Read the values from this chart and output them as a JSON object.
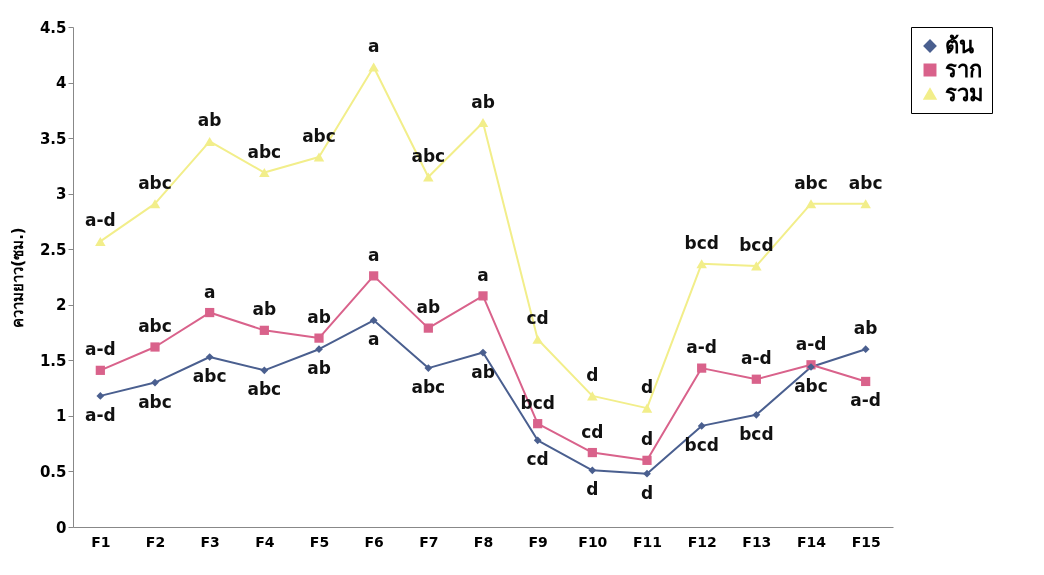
{
  "chart_data": {
    "type": "line",
    "ylabel": "ความยาว(ซม.)",
    "categories": [
      "F1",
      "F2",
      "F3",
      "F4",
      "F5",
      "F6",
      "F7",
      "F8",
      "F9",
      "F10",
      "F11",
      "F12",
      "F13",
      "F14",
      "F15"
    ],
    "series": [
      {
        "name": "ต้น",
        "color": "#4a5f8f",
        "marker": "diamond",
        "values": [
          1.18,
          1.3,
          1.53,
          1.41,
          1.6,
          1.86,
          1.43,
          1.57,
          0.78,
          0.51,
          0.48,
          0.91,
          1.01,
          1.44,
          1.6
        ]
      },
      {
        "name": "ราก",
        "color": "#d9628b",
        "marker": "square",
        "values": [
          1.41,
          1.62,
          1.93,
          1.77,
          1.7,
          2.26,
          1.79,
          2.08,
          0.93,
          0.67,
          0.6,
          1.43,
          1.33,
          1.46,
          1.31
        ]
      },
      {
        "name": "รวม",
        "color": "#f2ee8a",
        "marker": "triangle",
        "values": [
          2.57,
          2.91,
          3.47,
          3.19,
          3.33,
          4.14,
          3.15,
          3.64,
          1.69,
          1.18,
          1.07,
          2.37,
          2.35,
          2.91,
          2.91
        ]
      }
    ],
    "ylim": [
      0,
      4.5
    ],
    "yticks": [
      0,
      0.5,
      1,
      1.5,
      2,
      2.5,
      3,
      3.5,
      4,
      4.5
    ],
    "grid": false,
    "legend": "top right",
    "annotations": [
      {
        "text": "a-d",
        "x": "F1",
        "y": 2.57
      },
      {
        "text": "abc",
        "x": "F2",
        "y": 2.91
      },
      {
        "text": "ab",
        "x": "F3",
        "y": 3.47
      },
      {
        "text": "abc",
        "x": "F4",
        "y": 3.19
      },
      {
        "text": "abc",
        "x": "F5",
        "y": 3.33
      },
      {
        "text": "a",
        "x": "F6",
        "y": 4.14
      },
      {
        "text": "abc",
        "x": "F7",
        "y": 3.15
      },
      {
        "text": "ab",
        "x": "F8",
        "y": 3.64
      },
      {
        "text": "cd",
        "x": "F9",
        "y": 1.69
      },
      {
        "text": "d",
        "x": "F10",
        "y": 1.18
      },
      {
        "text": "d",
        "x": "F11",
        "y": 1.07
      },
      {
        "text": "bcd",
        "x": "F12",
        "y": 2.37
      },
      {
        "text": "bcd",
        "x": "F13",
        "y": 2.35
      },
      {
        "text": "abc",
        "x": "F14",
        "y": 2.91
      },
      {
        "text": "abc",
        "x": "F15",
        "y": 2.91
      },
      {
        "text": "a-d",
        "x": "F1",
        "y": 1.41
      },
      {
        "text": "abc",
        "x": "F2",
        "y": 1.62
      },
      {
        "text": "a",
        "x": "F3",
        "y": 1.93
      },
      {
        "text": "ab",
        "x": "F4",
        "y": 1.77
      },
      {
        "text": "ab",
        "x": "F5",
        "y": 1.7
      },
      {
        "text": "a",
        "x": "F6",
        "y": 2.26
      },
      {
        "text": "ab",
        "x": "F7",
        "y": 1.79
      },
      {
        "text": "a",
        "x": "F8",
        "y": 2.08
      },
      {
        "text": "bcd",
        "x": "F9",
        "y": 0.93
      },
      {
        "text": "cd",
        "x": "F10",
        "y": 0.67
      },
      {
        "text": "d",
        "x": "F11",
        "y": 0.6
      },
      {
        "text": "a-d",
        "x": "F12",
        "y": 1.43
      },
      {
        "text": "a-d",
        "x": "F13",
        "y": 1.33
      },
      {
        "text": "a-d",
        "x": "F14",
        "y": 1.46
      },
      {
        "text": "a-d",
        "x": "F15",
        "y": 1.31
      },
      {
        "text": "a-d",
        "x": "F1",
        "y": 1.18
      },
      {
        "text": "abc",
        "x": "F2",
        "y": 1.3
      },
      {
        "text": "abc",
        "x": "F3",
        "y": 1.53
      },
      {
        "text": "abc",
        "x": "F4",
        "y": 1.41
      },
      {
        "text": "ab",
        "x": "F5",
        "y": 1.6
      },
      {
        "text": "a",
        "x": "F6",
        "y": 1.86
      },
      {
        "text": "abc",
        "x": "F7",
        "y": 1.43
      },
      {
        "text": "ab",
        "x": "F8",
        "y": 1.57
      },
      {
        "text": "cd",
        "x": "F9",
        "y": 0.78
      },
      {
        "text": "d",
        "x": "F10",
        "y": 0.51
      },
      {
        "text": "d",
        "x": "F11",
        "y": 0.48
      },
      {
        "text": "bcd",
        "x": "F12",
        "y": 0.91
      },
      {
        "text": "bcd",
        "x": "F13",
        "y": 1.01
      },
      {
        "text": "abc",
        "x": "F14",
        "y": 1.44
      },
      {
        "text": "ab",
        "x": "F15",
        "y": 1.6
      }
    ]
  }
}
